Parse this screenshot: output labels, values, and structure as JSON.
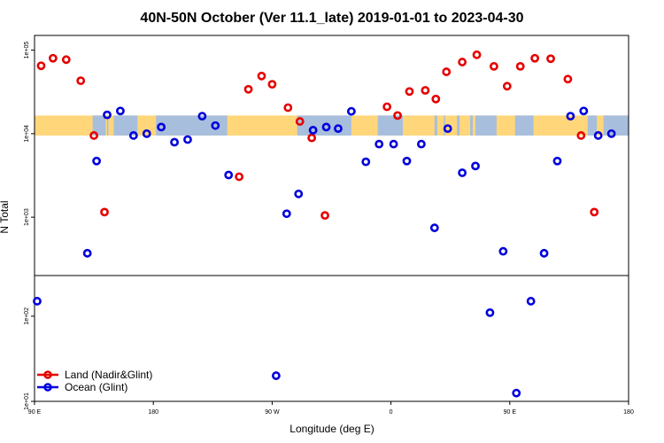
{
  "chart_data": {
    "type": "scatter",
    "title": "40N-50N October (Ver 11.1_late)   2019-01-01 to 2023-04-30",
    "xlabel": "Longitude (deg E)",
    "ylabel": "N Total",
    "x_tick_labels": [
      "90 E",
      "180",
      "90 W",
      "0",
      "90 E",
      "180"
    ],
    "x_ticks": [
      90,
      180,
      270,
      360,
      450,
      540
    ],
    "xlim": [
      90,
      540
    ],
    "y_scale": "log",
    "upper_panel": {
      "ylim": [
        200,
        150000
      ],
      "y_ticks": [
        1000,
        10000,
        100000
      ],
      "y_tick_labels": [
        "1e+03",
        "1e+04",
        "1e+05"
      ]
    },
    "lower_panel": {
      "ylim": [
        10,
        300
      ],
      "y_ticks": [
        10,
        100
      ],
      "y_tick_labels": [
        "1e+01",
        "1e+02"
      ]
    },
    "land_ocean_band": {
      "y_range": [
        9500,
        16500
      ],
      "land_color": "#ffd77a",
      "ocean_color": "#a8bedd",
      "ocean_segments": [
        [
          134,
          144
        ],
        [
          145,
          146
        ],
        [
          150,
          168
        ],
        [
          182,
          236
        ],
        [
          289,
          330
        ],
        [
          350,
          369
        ],
        [
          393,
          395
        ],
        [
          400,
          401
        ],
        [
          410,
          412
        ],
        [
          420,
          422
        ],
        [
          424,
          440
        ],
        [
          454,
          468
        ],
        [
          509,
          516
        ],
        [
          521,
          540
        ]
      ]
    },
    "legend": {
      "position": "bottom-left"
    },
    "series": [
      {
        "name": "Land (Nadir&Glint)",
        "color": "#e60000",
        "points": [
          [
            95,
            65000
          ],
          [
            104,
            80000
          ],
          [
            114,
            77000
          ],
          [
            125,
            43000
          ],
          [
            135,
            9500
          ],
          [
            143,
            1150
          ],
          [
            245,
            3050
          ],
          [
            252,
            34000
          ],
          [
            262,
            49000
          ],
          [
            270,
            39000
          ],
          [
            282,
            20500
          ],
          [
            291,
            14000
          ],
          [
            300,
            8900
          ],
          [
            310,
            1050
          ],
          [
            357,
            21000
          ],
          [
            365,
            16500
          ],
          [
            374,
            32000
          ],
          [
            386,
            33000
          ],
          [
            394,
            26000
          ],
          [
            402,
            55000
          ],
          [
            414,
            72000
          ],
          [
            425,
            88000
          ],
          [
            438,
            64000
          ],
          [
            448,
            37000
          ],
          [
            458,
            64000
          ],
          [
            469,
            80000
          ],
          [
            481,
            79000
          ],
          [
            494,
            45000
          ],
          [
            504,
            9500
          ],
          [
            514,
            1150
          ]
        ]
      },
      {
        "name": "Ocean (Glint)",
        "color": "#0000dd",
        "points": [
          [
            92,
            150
          ],
          [
            130,
            370
          ],
          [
            137,
            4700
          ],
          [
            145,
            16800
          ],
          [
            155,
            18700
          ],
          [
            165,
            9500
          ],
          [
            175,
            10000
          ],
          [
            186,
            12000
          ],
          [
            196,
            7900
          ],
          [
            206,
            8500
          ],
          [
            217,
            16200
          ],
          [
            227,
            12500
          ],
          [
            237,
            3200
          ],
          [
            273,
            20
          ],
          [
            281,
            1100
          ],
          [
            290,
            1900
          ],
          [
            301,
            11000
          ],
          [
            311,
            12000
          ],
          [
            320,
            11500
          ],
          [
            330,
            18500
          ],
          [
            341,
            4600
          ],
          [
            351,
            7500
          ],
          [
            362,
            7500
          ],
          [
            372,
            4700
          ],
          [
            383,
            7500
          ],
          [
            393,
            745
          ],
          [
            403,
            11500
          ],
          [
            414,
            3400
          ],
          [
            424,
            4100
          ],
          [
            435,
            110
          ],
          [
            445,
            390
          ],
          [
            455,
            12.5
          ],
          [
            466,
            150
          ],
          [
            476,
            370
          ],
          [
            486,
            4700
          ],
          [
            496,
            16200
          ],
          [
            506,
            18700
          ],
          [
            517,
            9500
          ],
          [
            527,
            10000
          ]
        ]
      }
    ]
  }
}
